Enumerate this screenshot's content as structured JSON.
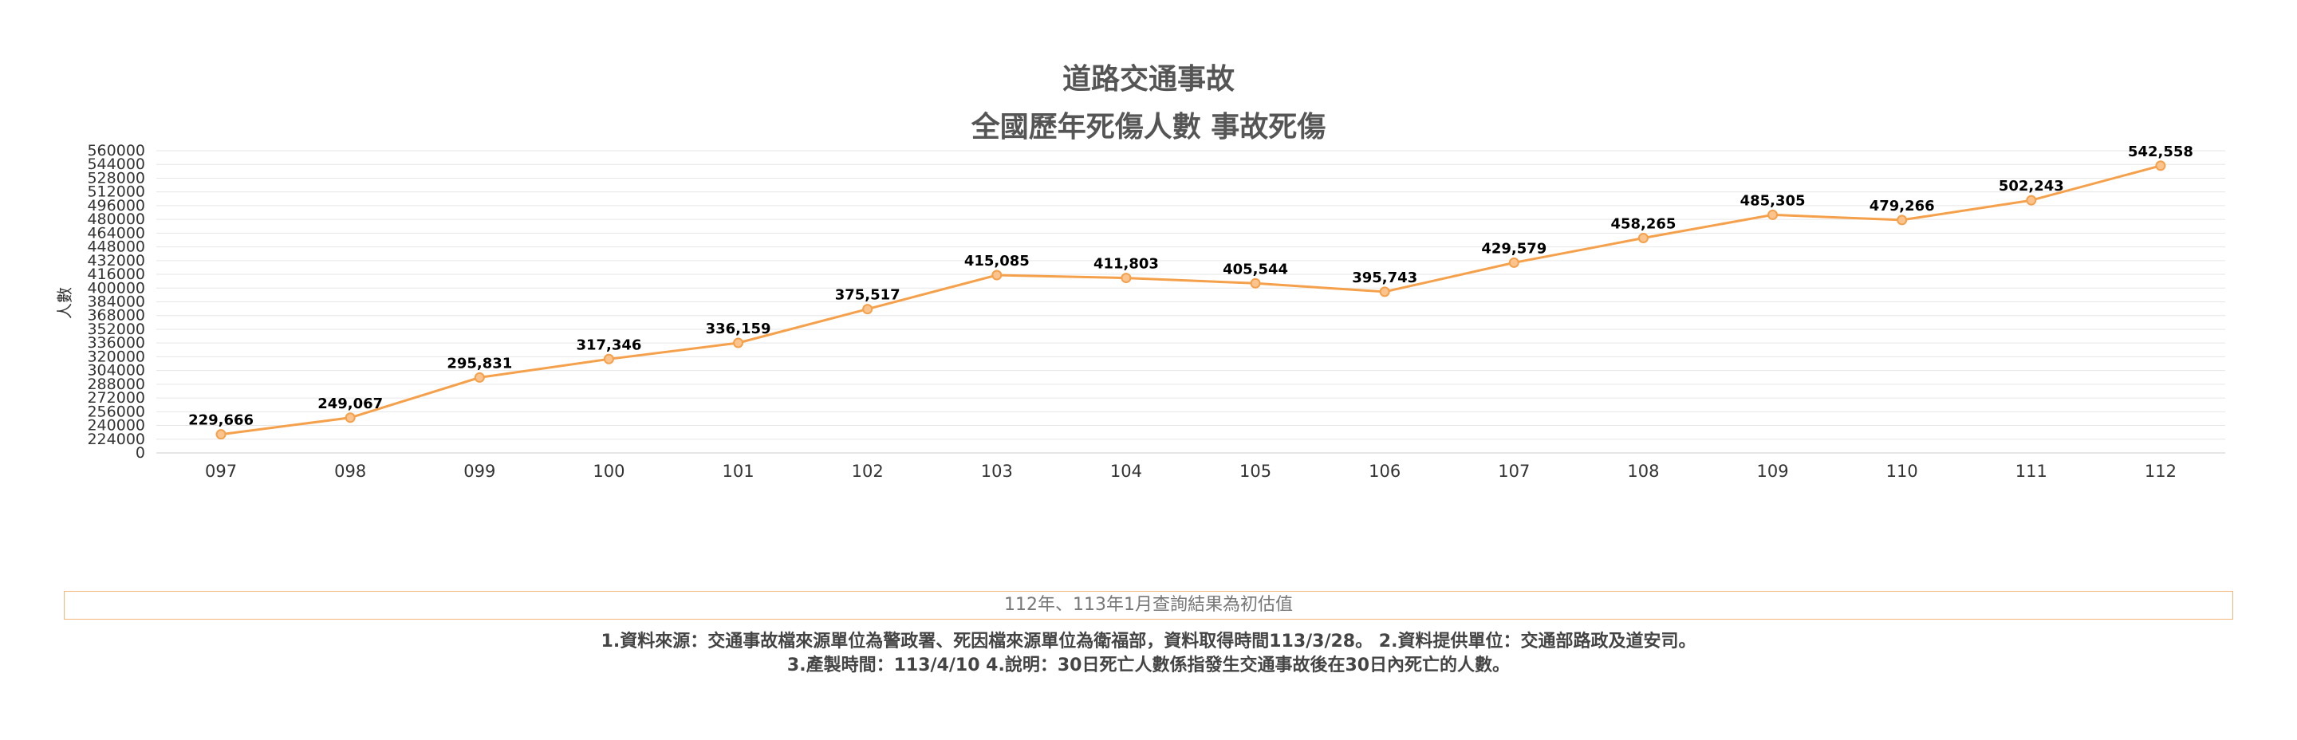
{
  "chart_data": {
    "type": "line",
    "title": "道路交通事故",
    "subtitle": "全國歷年死傷人數 事故死傷",
    "ylabel": "人數",
    "xlabel": "",
    "ylim": [
      0,
      560000
    ],
    "y_ticks": [
      "560000",
      "544000",
      "528000",
      "512000",
      "496000",
      "480000",
      "464000",
      "448000",
      "432000",
      "416000",
      "400000",
      "384000",
      "368000",
      "352000",
      "336000",
      "320000",
      "304000",
      "288000",
      "272000",
      "256000",
      "240000",
      "224000",
      "0"
    ],
    "y_tick_values": [
      560000,
      544000,
      528000,
      512000,
      496000,
      480000,
      464000,
      448000,
      432000,
      416000,
      400000,
      384000,
      368000,
      352000,
      336000,
      320000,
      304000,
      288000,
      272000,
      256000,
      240000,
      224000,
      0
    ],
    "categories": [
      "097",
      "098",
      "099",
      "100",
      "101",
      "102",
      "103",
      "104",
      "105",
      "106",
      "107",
      "108",
      "109",
      "110",
      "111",
      "112"
    ],
    "values": [
      229666,
      249067,
      295831,
      317346,
      336159,
      375517,
      415085,
      411803,
      405544,
      395743,
      429579,
      458265,
      485305,
      479266,
      502243,
      542558
    ],
    "data_labels": [
      "229,666",
      "249,067",
      "295,831",
      "317,346",
      "336,159",
      "375,517",
      "415,085",
      "411,803",
      "405,544",
      "395,743",
      "429,579",
      "458,265",
      "485,305",
      "479,266",
      "502,243",
      "542,558"
    ],
    "line_color": "#f5a04a",
    "grid": true,
    "legend": "none"
  },
  "notes": {
    "preliminary": "112年、113年1月查詢結果為初估值",
    "line1": "1.資料來源：交通事故檔來源單位為警政署、死因檔來源單位為衛福部，資料取得時間113/3/28。 2.資料提供單位：交通部路政及道安司。",
    "line2": "3.產製時間：113/4/10 4.說明：30日死亡人數係指發生交通事故後在30日內死亡的人數。"
  },
  "colors": {
    "accent": "#f5a04a",
    "grid": "#e6e6e6",
    "note_border": "#f3b678"
  }
}
